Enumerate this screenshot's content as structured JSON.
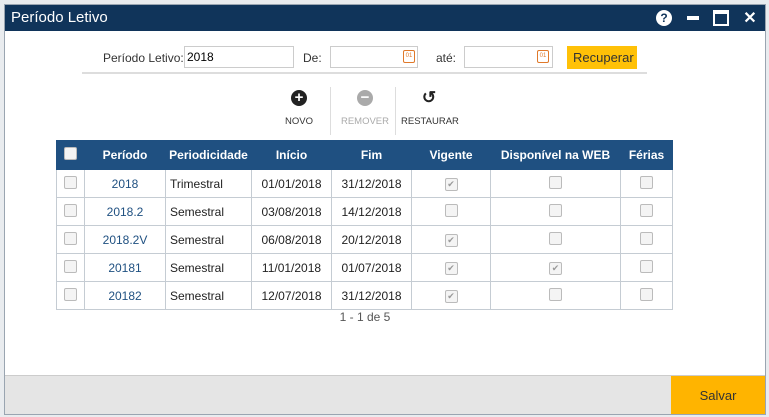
{
  "window": {
    "title": "Período Letivo"
  },
  "filters": {
    "periodo_label": "Período Letivo:",
    "periodo_value": "2018",
    "de_label": "De:",
    "de_value": "",
    "ate_label": "até:",
    "ate_value": "",
    "recuperar": "Recuperar"
  },
  "toolbar": {
    "novo": "NOVO",
    "remover": "REMOVER",
    "restaurar": "RESTAURAR"
  },
  "table": {
    "headers": [
      "Período",
      "Periodicidade",
      "Início",
      "Fim",
      "Vigente",
      "Disponível na WEB",
      "Férias"
    ],
    "rows": [
      {
        "periodo": "2018",
        "periodicidade": "Trimestral",
        "inicio": "01/01/2018",
        "fim": "31/12/2018",
        "vigente": true,
        "web": false,
        "ferias": false
      },
      {
        "periodo": "2018.2",
        "periodicidade": "Semestral",
        "inicio": "03/08/2018",
        "fim": "14/12/2018",
        "vigente": false,
        "web": false,
        "ferias": false
      },
      {
        "periodo": "2018.2V",
        "periodicidade": "Semestral",
        "inicio": "06/08/2018",
        "fim": "20/12/2018",
        "vigente": true,
        "web": false,
        "ferias": false
      },
      {
        "periodo": "20181",
        "periodicidade": "Semestral",
        "inicio": "11/01/2018",
        "fim": "01/07/2018",
        "vigente": true,
        "web": true,
        "ferias": false
      },
      {
        "periodo": "20182",
        "periodicidade": "Semestral",
        "inicio": "12/07/2018",
        "fim": "31/12/2018",
        "vigente": true,
        "web": false,
        "ferias": false
      }
    ]
  },
  "pagination": "1 - 1 de 5",
  "footer": {
    "salvar": "Salvar"
  },
  "colors": {
    "titlebar": "#10345a",
    "header": "#1f5081",
    "accent": "#ffc107",
    "save": "#ffb400"
  }
}
